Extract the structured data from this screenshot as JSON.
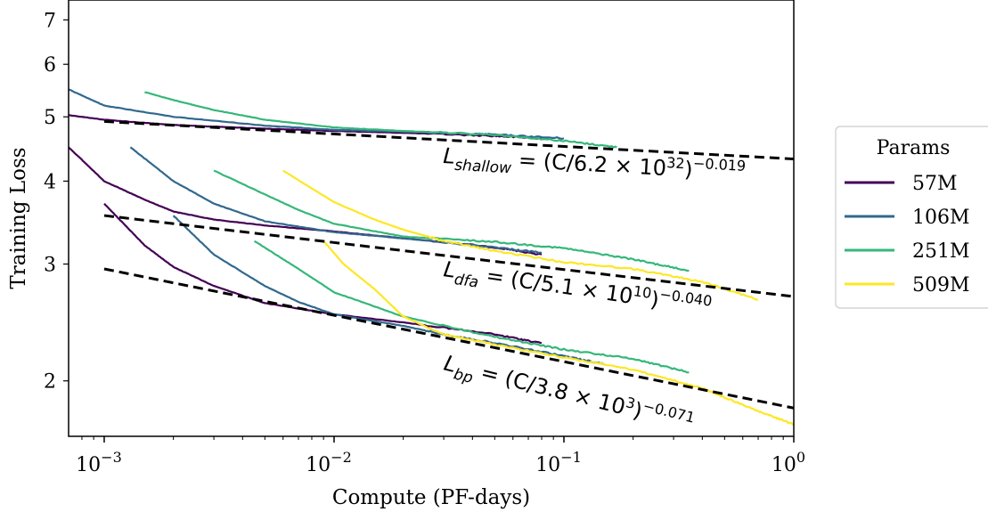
{
  "chart_data": {
    "type": "line",
    "x_scale": "log",
    "y_scale": "log",
    "xlabel": "Compute (PF-days)",
    "ylabel": "Training Loss",
    "xlim": [
      0.0007,
      1.0
    ],
    "ylim": [
      1.65,
      7.5
    ],
    "x_ticks": [
      {
        "value": 0.001,
        "base": "10",
        "exp": "−3"
      },
      {
        "value": 0.01,
        "base": "10",
        "exp": "−2"
      },
      {
        "value": 0.1,
        "base": "10",
        "exp": "−1"
      },
      {
        "value": 1.0,
        "base": "10",
        "exp": "0"
      }
    ],
    "y_ticks": [
      {
        "value": 2,
        "label": "2"
      },
      {
        "value": 3,
        "label": "3"
      },
      {
        "value": 4,
        "label": "4"
      },
      {
        "value": 5,
        "label": "5"
      },
      {
        "value": 6,
        "label": "6"
      },
      {
        "value": 7,
        "label": "7"
      }
    ],
    "grid": false,
    "legend": {
      "title": "Params",
      "placement": "outside-right",
      "entries": [
        {
          "name": "57M",
          "color": "#440154"
        },
        {
          "name": "106M",
          "color": "#31688e"
        },
        {
          "name": "251M",
          "color": "#35b779"
        },
        {
          "name": "509M",
          "color": "#fde725"
        }
      ]
    },
    "fits": [
      {
        "group": "shallow",
        "label_main": "L",
        "label_sub": "shallow",
        "label_expr": " = (C/6.2 × 10",
        "label_sup": "32",
        "label_close": ")",
        "label_exp": "−0.019",
        "x": [
          0.001,
          1.0
        ],
        "y": [
          4.92,
          4.32
        ]
      },
      {
        "group": "dfa",
        "label_main": "L",
        "label_sub": "dfa",
        "label_expr": " = (C/5.1 × 10",
        "label_sup": "10",
        "label_close": ")",
        "label_exp": "−0.040",
        "x": [
          0.001,
          1.0
        ],
        "y": [
          3.55,
          2.68
        ]
      },
      {
        "group": "bp",
        "label_main": "L",
        "label_sub": "bp",
        "label_expr": " = (C/3.8 × 10",
        "label_sup": "3",
        "label_close": ")",
        "label_exp": "−0.071",
        "x": [
          0.001,
          1.0
        ],
        "y": [
          2.95,
          1.82
        ]
      }
    ],
    "series": [
      {
        "name": "57M",
        "group": "shallow",
        "x": [
          0.0007,
          0.001,
          0.002,
          0.005,
          0.01,
          0.02,
          0.05,
          0.08
        ],
        "y": [
          5.03,
          4.95,
          4.86,
          4.8,
          4.76,
          4.73,
          4.68,
          4.64
        ]
      },
      {
        "name": "106M",
        "group": "shallow",
        "x": [
          0.0007,
          0.001,
          0.002,
          0.005,
          0.01,
          0.02,
          0.05,
          0.1
        ],
        "y": [
          5.5,
          5.2,
          5.0,
          4.85,
          4.78,
          4.75,
          4.7,
          4.64
        ]
      },
      {
        "name": "251M",
        "group": "shallow",
        "x": [
          0.0015,
          0.002,
          0.003,
          0.005,
          0.01,
          0.02,
          0.05,
          0.1,
          0.17
        ],
        "y": [
          5.45,
          5.3,
          5.12,
          4.95,
          4.82,
          4.76,
          4.7,
          4.6,
          4.5
        ]
      },
      {
        "name": "57M",
        "group": "dfa",
        "x": [
          0.0007,
          0.001,
          0.0015,
          0.002,
          0.003,
          0.005,
          0.01,
          0.02,
          0.05,
          0.08
        ],
        "y": [
          4.5,
          4.0,
          3.75,
          3.6,
          3.5,
          3.43,
          3.36,
          3.28,
          3.18,
          3.1
        ]
      },
      {
        "name": "106M",
        "group": "dfa",
        "x": [
          0.0013,
          0.002,
          0.003,
          0.005,
          0.01,
          0.02,
          0.05,
          0.08
        ],
        "y": [
          4.5,
          4.0,
          3.7,
          3.48,
          3.35,
          3.28,
          3.18,
          3.12
        ]
      },
      {
        "name": "251M",
        "group": "dfa",
        "x": [
          0.003,
          0.005,
          0.007,
          0.01,
          0.02,
          0.05,
          0.1,
          0.2,
          0.35
        ],
        "y": [
          4.15,
          3.82,
          3.62,
          3.45,
          3.3,
          3.24,
          3.17,
          3.05,
          2.93
        ]
      },
      {
        "name": "509M",
        "group": "dfa",
        "x": [
          0.006,
          0.008,
          0.01,
          0.015,
          0.02,
          0.03,
          0.05,
          0.1,
          0.2,
          0.4,
          0.7
        ],
        "y": [
          4.15,
          3.9,
          3.72,
          3.5,
          3.38,
          3.25,
          3.14,
          3.02,
          2.95,
          2.82,
          2.65
        ]
      },
      {
        "name": "57M",
        "group": "bp",
        "x": [
          0.001,
          0.0015,
          0.002,
          0.003,
          0.005,
          0.01,
          0.02,
          0.05,
          0.08
        ],
        "y": [
          3.7,
          3.2,
          2.97,
          2.78,
          2.62,
          2.52,
          2.45,
          2.35,
          2.28
        ]
      },
      {
        "name": "106M",
        "group": "bp",
        "x": [
          0.002,
          0.003,
          0.005,
          0.007,
          0.01,
          0.02,
          0.03,
          0.05,
          0.1,
          0.15
        ],
        "y": [
          3.55,
          3.1,
          2.78,
          2.63,
          2.52,
          2.42,
          2.35,
          2.28,
          2.18,
          2.12
        ]
      },
      {
        "name": "251M",
        "group": "bp",
        "x": [
          0.0045,
          0.007,
          0.01,
          0.02,
          0.05,
          0.1,
          0.2,
          0.35
        ],
        "y": [
          3.25,
          2.95,
          2.72,
          2.5,
          2.33,
          2.23,
          2.16,
          2.06
        ]
      },
      {
        "name": "509M",
        "group": "bp",
        "x": [
          0.009,
          0.011,
          0.015,
          0.02,
          0.03,
          0.05,
          0.1,
          0.2,
          0.4,
          0.7,
          1.0
        ],
        "y": [
          3.25,
          3.0,
          2.75,
          2.5,
          2.35,
          2.27,
          2.17,
          2.08,
          1.95,
          1.8,
          1.72
        ]
      }
    ]
  }
}
